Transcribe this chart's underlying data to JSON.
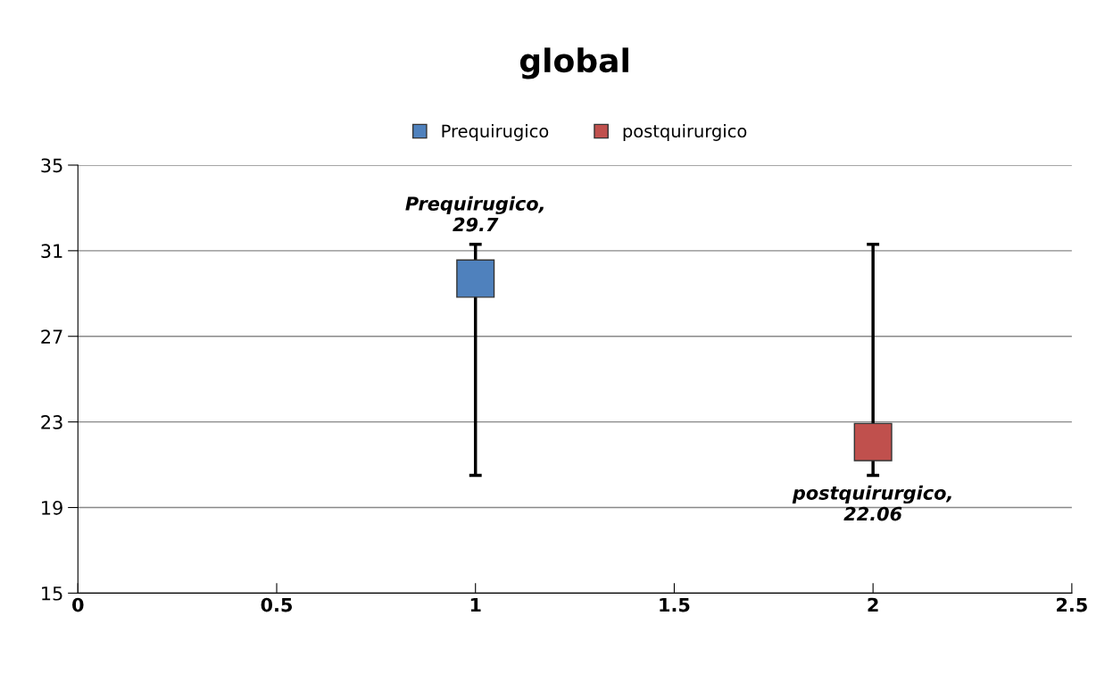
{
  "chart_data": {
    "type": "scatter",
    "title": "global",
    "series": [
      {
        "name": "Prequirugico",
        "color": "#4f81bd",
        "x": [
          1
        ],
        "values": [
          29.7
        ],
        "errors": [
          [
            20.5,
            31.3
          ]
        ],
        "value_labels": [
          "Prequirugico,\n29.7"
        ]
      },
      {
        "name": "postquirurgico",
        "color": "#c0504d",
        "x": [
          2
        ],
        "values": [
          22.06
        ],
        "errors": [
          [
            20.5,
            31.3
          ]
        ],
        "value_labels": [
          "postquirurgico,\n22.06"
        ]
      }
    ],
    "xlim": [
      0,
      2.5
    ],
    "xticks": [
      0,
      0.5,
      1,
      1.5,
      2,
      2.5
    ],
    "ylim": [
      15,
      35
    ],
    "yticks": [
      15,
      19,
      23,
      27,
      31,
      35
    ],
    "grid": "y",
    "legend": "top",
    "marker": "square"
  }
}
